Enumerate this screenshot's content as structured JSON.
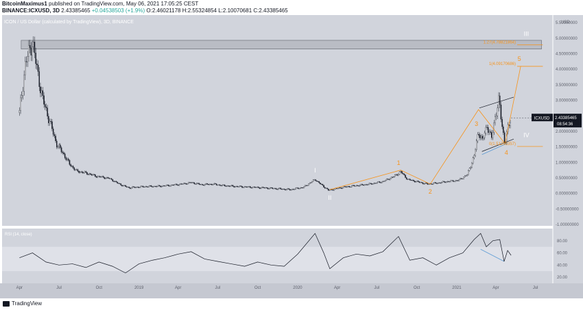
{
  "header": {
    "author": "BitcoinMaximus1",
    "published": "published on TradingView.com, May 06, 2021 17:05:25 CEST",
    "symbol": "BINANCE:ICXUSD, 3D",
    "price": "2.43385465",
    "change": "+0.04538503 (+1.9%)",
    "ohlc": "O:2.46021178 H:2.55324854 L:2.10070681 C:2.43385465"
  },
  "chart_data": [
    {
      "type": "candlestick",
      "title": "ICON / US Dollar (calculated by TradingView), 3D, BINANCE",
      "currency": "USD",
      "ylim": [
        -1.0,
        5.7
      ],
      "y_ticks": [
        "5.50000000",
        "5.00000000",
        "4.50000000",
        "4.00000000",
        "3.50000000",
        "3.00000000",
        "2.50000000",
        "2.00000000",
        "1.50000000",
        "1.00000000",
        "0.50000000",
        "0.00000000",
        "-0.50000000",
        "-1.00000000"
      ],
      "x_ticks": [
        "Apr",
        "Jul",
        "Oct",
        "2019",
        "Apr",
        "Jul",
        "Oct",
        "2020",
        "Apr",
        "Jul",
        "Oct",
        "2021",
        "Apr",
        "Jul"
      ],
      "last_price": "2.43385465",
      "countdown": "08:54:36",
      "series_label": "ICXUSD",
      "price_path": [
        {
          "t": "2018-04-01",
          "v": 2.6
        },
        {
          "t": "2018-04-15",
          "v": 4.2
        },
        {
          "t": "2018-05-01",
          "v": 4.9
        },
        {
          "t": "2018-05-10",
          "v": 4.1
        },
        {
          "t": "2018-05-25",
          "v": 3.0
        },
        {
          "t": "2018-06-10",
          "v": 2.3
        },
        {
          "t": "2018-06-25",
          "v": 1.6
        },
        {
          "t": "2018-07-10",
          "v": 1.3
        },
        {
          "t": "2018-07-25",
          "v": 0.95
        },
        {
          "t": "2018-08-10",
          "v": 0.72
        },
        {
          "t": "2018-08-25",
          "v": 0.68
        },
        {
          "t": "2018-09-10",
          "v": 0.62
        },
        {
          "t": "2018-09-25",
          "v": 0.55
        },
        {
          "t": "2018-10-10",
          "v": 0.52
        },
        {
          "t": "2018-10-25",
          "v": 0.48
        },
        {
          "t": "2018-11-10",
          "v": 0.35
        },
        {
          "t": "2018-11-25",
          "v": 0.25
        },
        {
          "t": "2018-12-10",
          "v": 0.18
        },
        {
          "t": "2018-12-25",
          "v": 0.2
        },
        {
          "t": "2019-01-15",
          "v": 0.22
        },
        {
          "t": "2019-02-15",
          "v": 0.23
        },
        {
          "t": "2019-03-15",
          "v": 0.26
        },
        {
          "t": "2019-04-10",
          "v": 0.3
        },
        {
          "t": "2019-05-01",
          "v": 0.35
        },
        {
          "t": "2019-05-25",
          "v": 0.28
        },
        {
          "t": "2019-06-20",
          "v": 0.3
        },
        {
          "t": "2019-07-15",
          "v": 0.25
        },
        {
          "t": "2019-08-15",
          "v": 0.22
        },
        {
          "t": "2019-09-15",
          "v": 0.2
        },
        {
          "t": "2019-10-15",
          "v": 0.18
        },
        {
          "t": "2019-11-15",
          "v": 0.15
        },
        {
          "t": "2019-12-15",
          "v": 0.12
        },
        {
          "t": "2020-01-15",
          "v": 0.2
        },
        {
          "t": "2020-02-10",
          "v": 0.45
        },
        {
          "t": "2020-02-20",
          "v": 0.33
        },
        {
          "t": "2020-03-12",
          "v": 0.1
        },
        {
          "t": "2020-04-15",
          "v": 0.2
        },
        {
          "t": "2020-05-15",
          "v": 0.25
        },
        {
          "t": "2020-06-15",
          "v": 0.3
        },
        {
          "t": "2020-07-15",
          "v": 0.38
        },
        {
          "t": "2020-08-10",
          "v": 0.55
        },
        {
          "t": "2020-08-25",
          "v": 0.7
        },
        {
          "t": "2020-09-10",
          "v": 0.45
        },
        {
          "t": "2020-10-01",
          "v": 0.38
        },
        {
          "t": "2020-10-25",
          "v": 0.3
        },
        {
          "t": "2020-11-15",
          "v": 0.33
        },
        {
          "t": "2020-12-10",
          "v": 0.38
        },
        {
          "t": "2021-01-05",
          "v": 0.42
        },
        {
          "t": "2021-01-25",
          "v": 0.6
        },
        {
          "t": "2021-02-10",
          "v": 1.2
        },
        {
          "t": "2021-02-20",
          "v": 2.0
        },
        {
          "t": "2021-03-01",
          "v": 1.7
        },
        {
          "t": "2021-03-12",
          "v": 2.2
        },
        {
          "t": "2021-03-22",
          "v": 1.75
        },
        {
          "t": "2021-04-01",
          "v": 2.6
        },
        {
          "t": "2021-04-08",
          "v": 3.0
        },
        {
          "t": "2021-04-15",
          "v": 2.2
        },
        {
          "t": "2021-04-22",
          "v": 1.6
        },
        {
          "t": "2021-04-29",
          "v": 2.1
        },
        {
          "t": "2021-05-06",
          "v": 2.43
        }
      ],
      "resistance_zone": [
        4.65,
        4.93
      ],
      "fib_levels": [
        {
          "label": "1.27(4.78821864)",
          "value": 4.788
        },
        {
          "label": "1(4.09170686)",
          "value": 4.092
        },
        {
          "label": "0(1.51203357)",
          "value": 1.512
        }
      ],
      "wave_labels": [
        {
          "text": "I",
          "t": "2020-02-10",
          "v": 0.45,
          "color": "#ffffff"
        },
        {
          "text": "II",
          "t": "2020-03-15",
          "v": 0.1,
          "color": "#ffffff"
        },
        {
          "text": "1",
          "t": "2020-08-25",
          "v": 0.7,
          "color": "#f7931a"
        },
        {
          "text": "2",
          "t": "2020-11-01",
          "v": 0.3,
          "color": "#f7931a"
        },
        {
          "text": "3",
          "t": "2021-02-20",
          "v": 2.0,
          "color": "#f7931a"
        },
        {
          "text": "4",
          "t": "2021-04-22",
          "v": 1.6,
          "color": "#f7931a"
        },
        {
          "text": "5",
          "t": "2021-05-28",
          "v": 4.09,
          "color": "#f7931a"
        },
        {
          "text": "III",
          "t": "2021-06-10",
          "v": 4.9,
          "color": "#ffffff"
        },
        {
          "text": "IV",
          "t": "2021-06-10",
          "v": 1.9,
          "color": "#ffffff"
        }
      ]
    },
    {
      "type": "line",
      "title": "RSI (14, close)",
      "ylim": [
        10,
        100
      ],
      "y_ticks": [
        "80.00",
        "60.00",
        "40.00",
        "20.00"
      ],
      "band": [
        30,
        70
      ],
      "values": [
        {
          "t": "2018-04-01",
          "v": 52
        },
        {
          "t": "2018-05-01",
          "v": 60
        },
        {
          "t": "2018-06-01",
          "v": 45
        },
        {
          "t": "2018-07-01",
          "v": 40
        },
        {
          "t": "2018-08-01",
          "v": 42
        },
        {
          "t": "2018-09-01",
          "v": 36
        },
        {
          "t": "2018-10-01",
          "v": 45
        },
        {
          "t": "2018-11-01",
          "v": 38
        },
        {
          "t": "2018-12-01",
          "v": 27
        },
        {
          "t": "2019-01-01",
          "v": 42
        },
        {
          "t": "2019-02-01",
          "v": 48
        },
        {
          "t": "2019-03-01",
          "v": 52
        },
        {
          "t": "2019-04-01",
          "v": 58
        },
        {
          "t": "2019-05-01",
          "v": 62
        },
        {
          "t": "2019-06-01",
          "v": 50
        },
        {
          "t": "2019-07-01",
          "v": 46
        },
        {
          "t": "2019-08-01",
          "v": 42
        },
        {
          "t": "2019-09-01",
          "v": 38
        },
        {
          "t": "2019-10-01",
          "v": 45
        },
        {
          "t": "2019-11-01",
          "v": 40
        },
        {
          "t": "2019-12-01",
          "v": 38
        },
        {
          "t": "2020-01-01",
          "v": 58
        },
        {
          "t": "2020-02-10",
          "v": 92
        },
        {
          "t": "2020-03-01",
          "v": 60
        },
        {
          "t": "2020-03-15",
          "v": 34
        },
        {
          "t": "2020-04-15",
          "v": 52
        },
        {
          "t": "2020-05-15",
          "v": 58
        },
        {
          "t": "2020-06-15",
          "v": 55
        },
        {
          "t": "2020-07-15",
          "v": 62
        },
        {
          "t": "2020-08-20",
          "v": 87
        },
        {
          "t": "2020-09-15",
          "v": 48
        },
        {
          "t": "2020-10-15",
          "v": 52
        },
        {
          "t": "2020-11-15",
          "v": 40
        },
        {
          "t": "2020-12-15",
          "v": 52
        },
        {
          "t": "2021-01-15",
          "v": 60
        },
        {
          "t": "2021-02-10",
          "v": 82
        },
        {
          "t": "2021-02-25",
          "v": 92
        },
        {
          "t": "2021-03-10",
          "v": 70
        },
        {
          "t": "2021-03-25",
          "v": 80
        },
        {
          "t": "2021-04-10",
          "v": 82
        },
        {
          "t": "2021-04-20",
          "v": 46
        },
        {
          "t": "2021-04-28",
          "v": 64
        },
        {
          "t": "2021-05-06",
          "v": 56
        }
      ]
    }
  ],
  "footer": {
    "brand": "TradingView"
  },
  "colors": {
    "candle": "#131722",
    "fib": "#f7931a",
    "wave_white": "#ffffff",
    "trendline": "#5b9bd5",
    "panel_bg": "#d1d4dc"
  }
}
